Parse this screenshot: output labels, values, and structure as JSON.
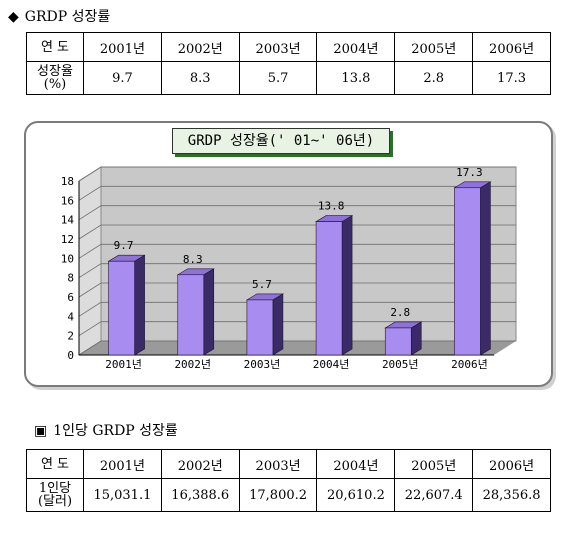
{
  "section1": {
    "marker": "◆",
    "title": "GRDP 성장률",
    "header_label": "연  도",
    "row_label": "성장율\n(%)",
    "years": [
      "2001년",
      "2002년",
      "2003년",
      "2004년",
      "2005년",
      "2006년"
    ],
    "values": [
      "9.7",
      "8.3",
      "5.7",
      "13.8",
      "2.8",
      "17.3"
    ]
  },
  "chart_data": {
    "type": "bar",
    "title": "GRDP 성장율(' 01~' 06년)",
    "categories": [
      "2001년",
      "2002년",
      "2003년",
      "2004년",
      "2005년",
      "2006년"
    ],
    "values": [
      9.7,
      8.3,
      5.7,
      13.8,
      2.8,
      17.3
    ],
    "data_labels": [
      "9.7",
      "8.3",
      "5.7",
      "13.8",
      "2.8",
      "17.3"
    ],
    "ylim": [
      0,
      18
    ],
    "yticks": [
      0,
      2,
      4,
      6,
      8,
      10,
      12,
      14,
      16,
      18
    ],
    "grid": true,
    "legend": "none",
    "style": "3d",
    "colors": {
      "bar_front": "#a98cf0",
      "bar_side": "#3a2a66",
      "bar_top": "#8e72d6",
      "wall": "#c8c8c8",
      "floor": "#9a9a9a"
    }
  },
  "section2": {
    "marker": "▣",
    "title": "1인당 GRDP 성장률",
    "header_label": "연  도",
    "row_label": "1인당\n(달러)",
    "years": [
      "2001년",
      "2002년",
      "2003년",
      "2004년",
      "2005년",
      "2006년"
    ],
    "values": [
      "15,031.1",
      "16,388.6",
      "17,800.2",
      "20,610.2",
      "22,607.4",
      "28,356.8"
    ]
  }
}
